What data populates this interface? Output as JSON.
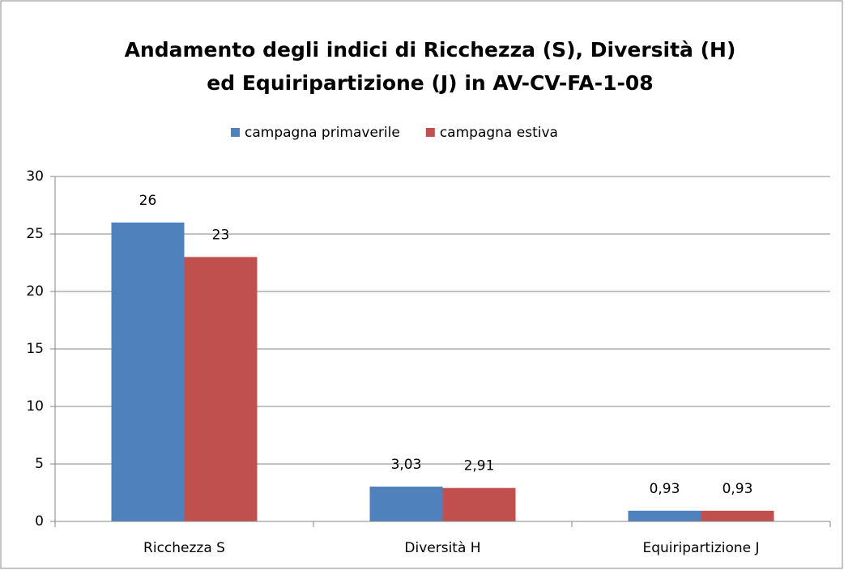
{
  "chart_data": {
    "type": "bar",
    "title": [
      "Andamento degli indici di Ricchezza (S), Diversità (H)",
      "ed Equiripartizione (J) in AV-CV-FA-1-08"
    ],
    "categories": [
      "Ricchezza S",
      "Diversità H",
      "Equiripartizione J"
    ],
    "series": [
      {
        "name": "campagna primaverile",
        "color": "#4f81bd",
        "values": [
          26,
          3.03,
          0.93
        ],
        "value_labels": [
          "26",
          "3,03",
          "0,93"
        ]
      },
      {
        "name": "campagna estiva",
        "color": "#c0504d",
        "values": [
          23,
          2.91,
          0.93
        ],
        "value_labels": [
          "23",
          "2,91",
          "0,93"
        ]
      }
    ],
    "ylim": [
      0,
      30
    ],
    "yticks": [
      0,
      5,
      10,
      15,
      20,
      25,
      30
    ],
    "grid": true,
    "legend": "top"
  }
}
